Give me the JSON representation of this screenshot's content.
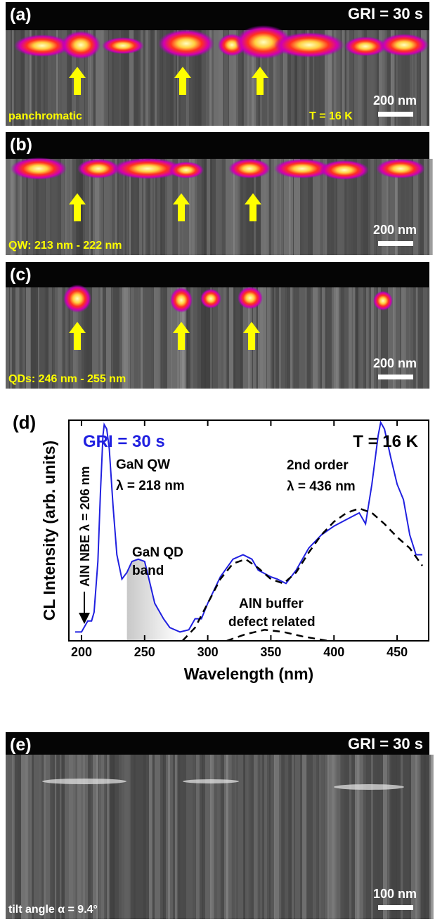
{
  "panels": [
    {
      "label": "(a)",
      "top_right": "GRI = 30 s",
      "bottom_left": "panchromatic",
      "bottom_right": "T = 16 K",
      "scale": "200 nm"
    },
    {
      "label": "(b)",
      "bottom_left": "QW: 213 nm - 222 nm",
      "scale": "200 nm"
    },
    {
      "label": "(c)",
      "bottom_left": "QDs: 246 nm - 255 nm",
      "scale": "200 nm"
    },
    {
      "label": "(e)",
      "top_right": "GRI = 30 s",
      "bottom_left": "tilt angle α = 9.4°",
      "scale": "100 nm"
    }
  ],
  "chart_data": {
    "type": "line",
    "label": "(d)",
    "x_label": "Wavelength (nm)",
    "y_label": "CL Intensity (arb. units)",
    "annotations": [
      "GRI = 30 s",
      "T = 16 K",
      "GaN QW",
      "λ = 218 nm",
      "2nd order",
      "λ = 436 nm",
      "GaN QD",
      "band",
      "AlN NBE λ = 206 nm",
      "AlN buffer",
      "defect related"
    ],
    "xlim": [
      190,
      475
    ],
    "xticks": [
      200,
      250,
      300,
      350,
      400,
      450
    ],
    "ylim": [
      0,
      1
    ],
    "series": [
      {
        "color": "#2020e0",
        "style": "solid",
        "x": [
          195,
          200,
          205,
          208,
          210,
          213,
          215,
          217,
          218,
          220,
          222,
          225,
          228,
          232,
          236,
          240,
          245,
          250,
          253,
          258,
          265,
          270,
          278,
          285,
          290,
          295,
          300,
          310,
          320,
          328,
          335,
          340,
          350,
          355,
          362,
          370,
          380,
          390,
          400,
          410,
          420,
          425,
          430,
          435,
          437,
          440,
          445,
          450,
          455,
          460,
          465,
          470
        ],
        "values": [
          0.04,
          0.04,
          0.09,
          0.09,
          0.13,
          0.36,
          0.67,
          0.93,
          0.98,
          0.96,
          0.87,
          0.61,
          0.39,
          0.28,
          0.31,
          0.36,
          0.37,
          0.36,
          0.29,
          0.17,
          0.1,
          0.06,
          0.04,
          0.05,
          0.1,
          0.1,
          0.17,
          0.29,
          0.37,
          0.39,
          0.37,
          0.32,
          0.29,
          0.28,
          0.26,
          0.32,
          0.42,
          0.48,
          0.52,
          0.55,
          0.58,
          0.53,
          0.71,
          0.93,
          0.99,
          0.96,
          0.83,
          0.71,
          0.64,
          0.48,
          0.39,
          0.39
        ]
      },
      {
        "color": "#000000",
        "style": "dashed",
        "x": [
          280,
          290,
          300,
          310,
          320,
          330,
          340,
          350,
          360,
          370,
          380,
          390,
          400,
          410,
          420,
          430,
          440,
          450,
          460,
          470
        ],
        "values": [
          0.0,
          0.06,
          0.17,
          0.28,
          0.35,
          0.37,
          0.33,
          0.28,
          0.26,
          0.31,
          0.4,
          0.48,
          0.54,
          0.58,
          0.6,
          0.58,
          0.53,
          0.47,
          0.42,
          0.34
        ]
      },
      {
        "color": "#000000",
        "style": "dashed",
        "x": [
          315,
          330,
          345,
          360,
          375,
          395
        ],
        "values": [
          0.0,
          0.03,
          0.05,
          0.04,
          0.02,
          0.0
        ]
      }
    ]
  }
}
